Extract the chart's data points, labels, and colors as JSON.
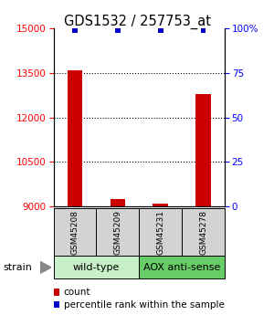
{
  "title": "GDS1532 / 257753_at",
  "samples": [
    "GSM45208",
    "GSM45209",
    "GSM45231",
    "GSM45278"
  ],
  "count_values": [
    13600,
    9250,
    9100,
    12800
  ],
  "percentile_values": [
    100,
    100,
    100,
    100
  ],
  "bar_color": "#cc0000",
  "percentile_color": "#0000cc",
  "ylim_left": [
    9000,
    15000
  ],
  "ylim_right": [
    0,
    100
  ],
  "yticks_left": [
    9000,
    10500,
    12000,
    13500,
    15000
  ],
  "yticks_right": [
    0,
    25,
    50,
    75,
    100
  ],
  "ytick_labels_right": [
    "0",
    "25",
    "50",
    "75",
    "100%"
  ],
  "groups": [
    {
      "label": "wild-type",
      "samples": [
        0,
        1
      ],
      "color": "#c8f0c8"
    },
    {
      "label": "AOX anti-sense",
      "samples": [
        2,
        3
      ],
      "color": "#66cc66"
    }
  ],
  "strain_label": "strain",
  "legend_items": [
    {
      "label": "count",
      "color": "#cc0000"
    },
    {
      "label": "percentile rank within the sample",
      "color": "#0000cc"
    }
  ],
  "bar_width": 0.35,
  "perc_bar_width": 0.12
}
